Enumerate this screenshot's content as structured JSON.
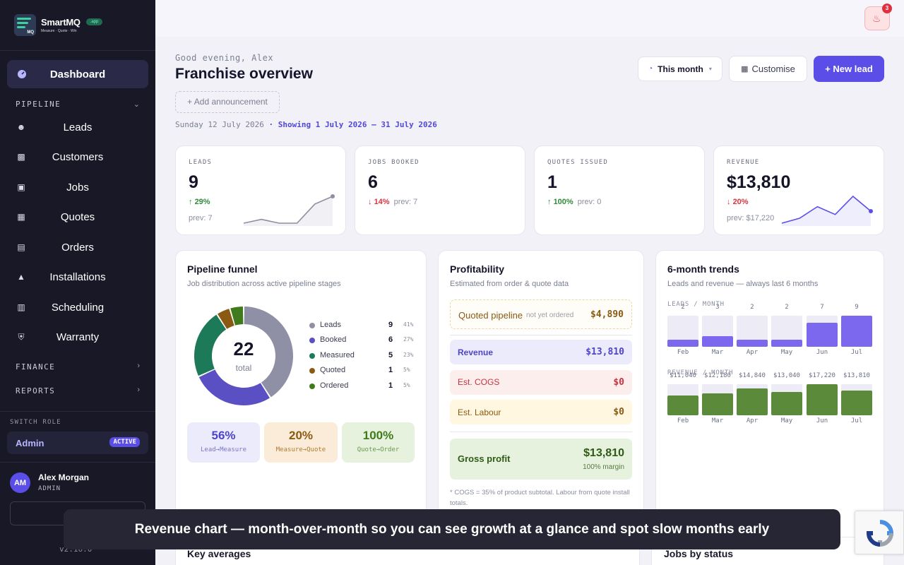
{
  "brand": {
    "name": "SmartMQ",
    "tagline": "Measure · Quote · Win",
    "badge": ".app",
    "logo_text": "MQ"
  },
  "sidebar": {
    "active": {
      "label": "Dashboard"
    },
    "pipeline_header": "PIPELINE",
    "items": [
      {
        "label": "Leads",
        "icon": "add-user-icon"
      },
      {
        "label": "Customers",
        "icon": "contact-card-icon"
      },
      {
        "label": "Jobs",
        "icon": "briefcase-icon"
      },
      {
        "label": "Quotes",
        "icon": "document-dollar-icon"
      },
      {
        "label": "Orders",
        "icon": "list-document-icon"
      },
      {
        "label": "Installations",
        "icon": "hard-hat-icon"
      },
      {
        "label": "Scheduling",
        "icon": "calendar-icon"
      },
      {
        "label": "Warranty",
        "icon": "shield-icon"
      }
    ],
    "finance_header": "FINANCE",
    "reports_header": "REPORTS",
    "switch_role_header": "SWITCH ROLE",
    "role": {
      "label": "Admin",
      "badge": "ACTIVE"
    },
    "user": {
      "initials": "AM",
      "name": "Alex Morgan",
      "role": "ADMIN"
    },
    "signout_label": "S",
    "version": "v2.16.0"
  },
  "header": {
    "notifications_count": "3",
    "greeting": "Good evening, Alex",
    "title": "Franchise overview",
    "announcement": "+ Add announcement",
    "date": "Sunday 12 July 2026",
    "range": "· Showing 1 July 2026 – 31 July 2026",
    "period_select": "This month",
    "customise": "Customise",
    "new_lead": "+ New lead"
  },
  "kpis": [
    {
      "label": "LEADS",
      "value": "9",
      "delta": "29%",
      "direction": "up",
      "prev": "prev: 7",
      "spark": [
        2,
        3,
        2,
        2,
        7,
        9
      ]
    },
    {
      "label": "JOBS BOOKED",
      "value": "6",
      "delta": "14%",
      "direction": "down",
      "prev": "prev: 7"
    },
    {
      "label": "QUOTES ISSUED",
      "value": "1",
      "delta": "100%",
      "direction": "up",
      "prev": "prev: 0"
    },
    {
      "label": "REVENUE",
      "value": "$13,810",
      "delta": "20%",
      "direction": "down",
      "prev": "prev: $17,220",
      "spark": [
        11040,
        12180,
        14840,
        13040,
        17220,
        13810
      ]
    }
  ],
  "funnel": {
    "title": "Pipeline funnel",
    "subtitle": "Job distribution across active pipeline stages",
    "total": "22",
    "total_label": "total",
    "stages": [
      {
        "label": "Leads",
        "count": "9",
        "pct": "41%",
        "value": 9,
        "color": "#8f8fa6"
      },
      {
        "label": "Booked",
        "count": "6",
        "pct": "27%",
        "value": 6,
        "color": "#5b4fc4"
      },
      {
        "label": "Measured",
        "count": "5",
        "pct": "23%",
        "value": 5,
        "color": "#1c7a58"
      },
      {
        "label": "Quoted",
        "count": "1",
        "pct": "5%",
        "value": 1,
        "color": "#8a5a12"
      },
      {
        "label": "Ordered",
        "count": "1",
        "pct": "5%",
        "value": 1,
        "color": "#3f7a1c"
      }
    ],
    "conversions": [
      {
        "value": "56%",
        "label": "Lead→Measure"
      },
      {
        "value": "20%",
        "label": "Measure→Quote"
      },
      {
        "value": "100%",
        "label": "Quote→Order"
      }
    ]
  },
  "profitability": {
    "title": "Profitability",
    "subtitle": "Estimated from order & quote data",
    "quoted_pipeline": {
      "label": "Quoted pipeline",
      "note": "not yet ordered",
      "value": "$4,890"
    },
    "revenue": {
      "label": "Revenue",
      "value": "$13,810"
    },
    "cogs": {
      "label": "Est. COGS",
      "value": "$0"
    },
    "labour": {
      "label": "Est. Labour",
      "value": "$0"
    },
    "gross": {
      "label": "Gross profit",
      "value": "$13,810",
      "margin": "100% margin"
    },
    "footnote": "* COGS = 35% of product subtotal. Labour from quote install totals."
  },
  "chart_data": {
    "type": "bar",
    "title": "6-month trends",
    "subtitle": "Leads and revenue — always last 6 months",
    "categories": [
      "Feb",
      "Mar",
      "Apr",
      "May",
      "Jun",
      "Jul"
    ],
    "series": [
      {
        "name": "LEADS / MONTH",
        "values": [
          2,
          3,
          2,
          2,
          7,
          9
        ],
        "labels": [
          "2",
          "3",
          "2",
          "2",
          "7",
          "9"
        ]
      },
      {
        "name": "REVENUE / MONTH",
        "values": [
          11040,
          12180,
          14840,
          13040,
          17220,
          13810
        ],
        "labels": [
          "$11,040",
          "$12,180",
          "$14,840",
          "$13,040",
          "$17,220",
          "$13,810"
        ]
      }
    ]
  },
  "bottom": {
    "key_averages": "Key averages",
    "jobs_by_status": "Jobs by status"
  },
  "toast": "Revenue chart — month-over-month so you can see growth at a glance and spot slow months early",
  "colors": {
    "accent": "#5b4ee8",
    "sidebar": "#181826",
    "leads_bar": "#7b68ee",
    "revenue_bar": "#5a8a3a"
  }
}
